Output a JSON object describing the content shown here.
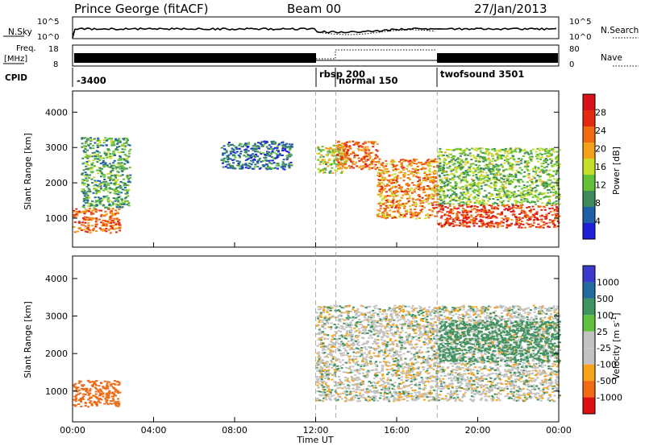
{
  "header": {
    "station_title": "Prince George (fitACF)",
    "beam_label": "Beam 00",
    "date_label": "27/Jan/2013"
  },
  "noise_panel": {
    "left_label": "N.Sky",
    "right_label": "N.Search",
    "left_ticks": [
      "10^5",
      "10^0"
    ],
    "right_ticks": [
      "10^5",
      "10^0"
    ]
  },
  "freq_panel": {
    "left_label_1": "Freq.",
    "left_label_2": "[MHz]",
    "right_label": "Nave",
    "left_ticks": [
      "18",
      "8"
    ],
    "right_ticks": [
      "80",
      "0"
    ]
  },
  "cpid_panel": {
    "label": "CPID",
    "segments": [
      {
        "label": "-3400",
        "start_hour": 0
      },
      {
        "label": "rbsp 200",
        "start_hour": 12.0
      },
      {
        "label": "normal 150",
        "start_hour": 13.0
      },
      {
        "label": "twofsound 3501",
        "start_hour": 18.0
      }
    ]
  },
  "x_axis": {
    "label": "Time UT",
    "ticks": [
      "00:00",
      "04:00",
      "08:00",
      "12:00",
      "16:00",
      "20:00",
      "00:00"
    ]
  },
  "colors": {
    "power_scale": [
      "#1f1fd9",
      "#1f5fa8",
      "#3e8b5a",
      "#63c23a",
      "#c8dc2a",
      "#f3a01a",
      "#f06a14",
      "#e32a10",
      "#d8101a"
    ],
    "velocity_scale": [
      "#3a3acb",
      "#246a9f",
      "#3f9461",
      "#62c13c",
      "#c2c2c2",
      "#c2c2c2",
      "#f7a41c",
      "#f06a14",
      "#dd1010"
    ]
  },
  "chart_data": [
    {
      "type": "heatmap",
      "title": "Power",
      "xlabel": "Time UT",
      "ylabel": "Slant Range [km]",
      "xlim_hours": [
        0,
        24
      ],
      "ylim": [
        180,
        4600
      ],
      "yticks": [
        "1000",
        "2000",
        "3000",
        "4000"
      ],
      "colorbar_label": "Power [dB]",
      "colorbar_ticks": [
        "4",
        "8",
        "12",
        "16",
        "20",
        "24",
        "28"
      ],
      "colorbar_range": [
        0,
        30
      ],
      "echo_regions": [
        {
          "t_start": 0.0,
          "t_end": 2.3,
          "range_min": 600,
          "range_max": 1300,
          "value": 22
        },
        {
          "t_start": 0.4,
          "t_end": 2.8,
          "range_min": 1300,
          "range_max": 3300,
          "value": 10
        },
        {
          "t_start": 7.3,
          "t_end": 10.8,
          "range_min": 2400,
          "range_max": 3200,
          "value": 6
        },
        {
          "t_start": 12.0,
          "t_end": 13.5,
          "range_min": 2300,
          "range_max": 3100,
          "value": 14
        },
        {
          "t_start": 13.0,
          "t_end": 15.0,
          "range_min": 2400,
          "range_max": 3200,
          "value": 22
        },
        {
          "t_start": 15.0,
          "t_end": 18.0,
          "range_min": 1000,
          "range_max": 2700,
          "value": 20
        },
        {
          "t_start": 18.0,
          "t_end": 24.0,
          "range_min": 750,
          "range_max": 1400,
          "value": 24
        },
        {
          "t_start": 18.0,
          "t_end": 24.0,
          "range_min": 1400,
          "range_max": 3000,
          "value": 12
        }
      ]
    },
    {
      "type": "heatmap",
      "title": "Velocity",
      "xlabel": "Time UT",
      "ylabel": "Slant Range [km]",
      "xlim_hours": [
        0,
        24
      ],
      "ylim": [
        180,
        4600
      ],
      "yticks": [
        "1000",
        "2000",
        "3000",
        "4000"
      ],
      "colorbar_label": "Velocity [m s-1]",
      "colorbar_ticks": [
        "1000",
        "500",
        "100",
        "25",
        "-25",
        "-100",
        "-500",
        "-1000"
      ],
      "echo_regions": [
        {
          "t_start": 0.0,
          "t_end": 2.3,
          "range_min": 600,
          "range_max": 1300,
          "value": -300
        },
        {
          "t_start": 12.0,
          "t_end": 24.0,
          "range_min": 750,
          "range_max": 3300,
          "value": 0
        },
        {
          "t_start": 18.0,
          "t_end": 24.0,
          "range_min": 1800,
          "range_max": 2900,
          "value": 60
        }
      ]
    }
  ]
}
